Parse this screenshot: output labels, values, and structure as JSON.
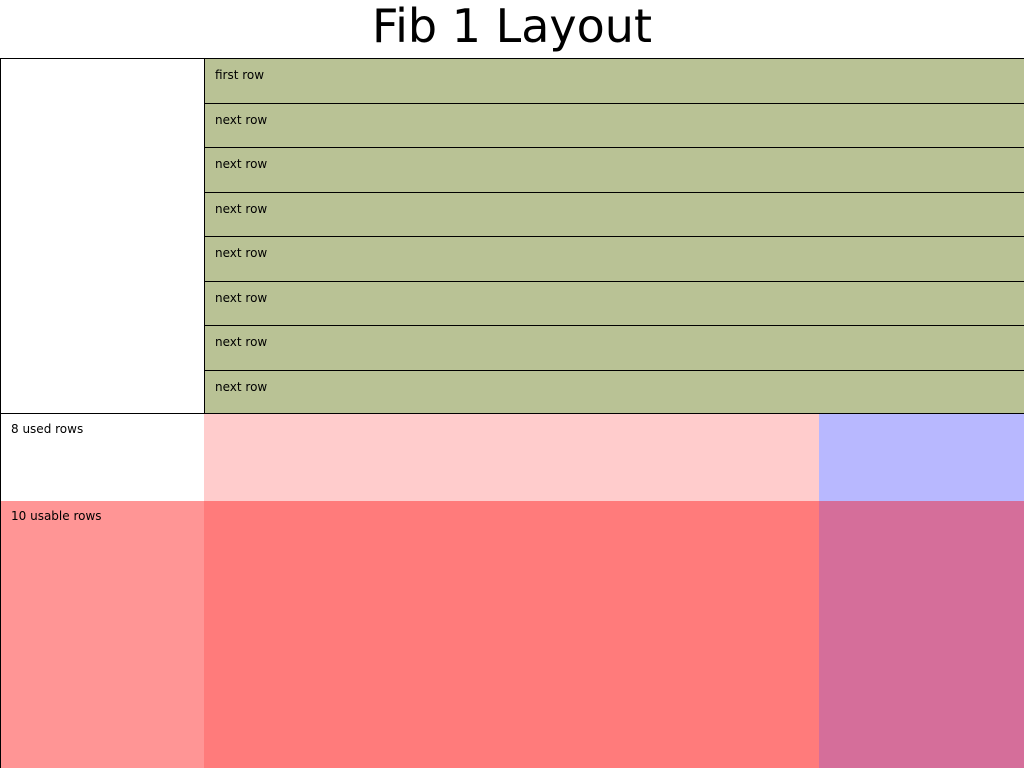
{
  "title": "Fib 1 Layout",
  "rows": [
    {
      "label": "first row"
    },
    {
      "label": "next row"
    },
    {
      "label": "next row"
    },
    {
      "label": "next row"
    },
    {
      "label": "next row"
    },
    {
      "label": "next row"
    },
    {
      "label": "next row"
    },
    {
      "label": "next row"
    }
  ],
  "used_rows_label": "8 used rows",
  "usable_rows_label": "10 usable rows",
  "colors": {
    "rows": "#b9c295",
    "used_pink": "#ffcccc",
    "used_blue": "#b8b8ff",
    "usable_label": "#ff9595",
    "usable_red": "#ff7b7b",
    "usable_magenta": "#d56e9a"
  }
}
